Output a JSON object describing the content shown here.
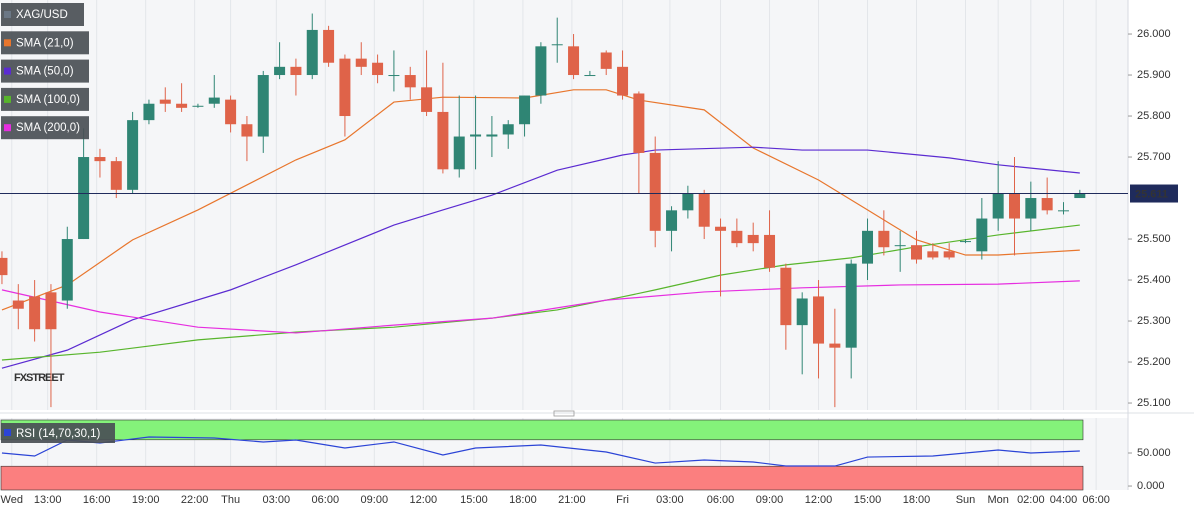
{
  "chart_data": [
    {
      "type": "candlestick",
      "title": "XAG/USD",
      "watermark": "FXSTREET",
      "up_color": "#2f8574",
      "down_color": "#df6349",
      "open": [
        25.454,
        25.35,
        25.36,
        25.37,
        25.35,
        25.5,
        25.7,
        25.69,
        25.62,
        25.79,
        25.84,
        25.83,
        25.825,
        25.83,
        25.84,
        25.78,
        25.75,
        25.9,
        25.92,
        25.9,
        26.01,
        25.94,
        25.94,
        25.93,
        25.9,
        25.9,
        25.87,
        25.81,
        25.67,
        25.75,
        25.75,
        25.755,
        25.78,
        25.85,
        25.975,
        25.97,
        25.9,
        25.955,
        25.92,
        25.855,
        25.71,
        25.52,
        25.57,
        25.61,
        25.53,
        25.52,
        25.51,
        25.51,
        25.43,
        25.29,
        25.36,
        25.245,
        25.235,
        25.44,
        25.52,
        25.485,
        25.485,
        25.47,
        25.47,
        25.495,
        25.47,
        25.55,
        25.61,
        25.55,
        25.6,
        25.57,
        25.6
      ],
      "high": [
        25.47,
        25.39,
        25.4,
        25.39,
        25.53,
        25.77,
        25.72,
        25.7,
        25.81,
        25.84,
        25.87,
        25.88,
        25.83,
        25.9,
        25.85,
        25.8,
        25.91,
        25.98,
        25.94,
        26.05,
        26.02,
        25.95,
        25.98,
        25.95,
        25.96,
        25.92,
        25.96,
        25.93,
        25.85,
        25.85,
        25.8,
        25.79,
        25.85,
        25.98,
        26.04,
        26,
        25.91,
        25.96,
        25.96,
        25.86,
        25.75,
        25.58,
        25.63,
        25.62,
        25.55,
        25.55,
        25.54,
        25.57,
        25.44,
        25.37,
        25.4,
        25.33,
        25.45,
        25.55,
        25.57,
        25.52,
        25.52,
        25.49,
        25.49,
        25.5,
        25.6,
        25.69,
        25.7,
        25.64,
        25.65,
        25.59,
        25.62
      ],
      "low": [
        25.39,
        25.28,
        25.25,
        25.09,
        25.33,
        25.5,
        25.65,
        25.6,
        25.61,
        25.78,
        25.81,
        25.81,
        25.82,
        25.82,
        25.76,
        25.69,
        25.71,
        25.89,
        25.85,
        25.89,
        25.92,
        25.75,
        25.9,
        25.88,
        25.86,
        25.84,
        25.8,
        25.66,
        25.65,
        25.67,
        25.7,
        25.72,
        25.75,
        25.83,
        25.93,
        25.89,
        25.9,
        25.9,
        25.84,
        25.61,
        25.48,
        25.47,
        25.55,
        25.5,
        25.36,
        25.48,
        25.47,
        25.42,
        25.23,
        25.17,
        25.16,
        25.09,
        25.16,
        25.4,
        25.46,
        25.42,
        25.44,
        25.45,
        25.45,
        25.49,
        25.45,
        25.52,
        25.46,
        25.52,
        25.56,
        25.56,
        25.6
      ],
      "close": [
        25.412,
        25.33,
        25.28,
        25.28,
        25.5,
        25.7,
        25.69,
        25.62,
        25.79,
        25.83,
        25.83,
        25.82,
        25.825,
        25.845,
        25.78,
        25.75,
        25.9,
        25.92,
        25.9,
        26.01,
        25.93,
        25.8,
        25.92,
        25.9,
        25.9,
        25.87,
        25.81,
        25.67,
        25.75,
        25.755,
        25.755,
        25.78,
        25.85,
        25.97,
        25.975,
        25.9,
        25.9,
        25.915,
        25.85,
        25.71,
        25.52,
        25.57,
        25.61,
        25.53,
        25.52,
        25.49,
        25.49,
        25.43,
        25.29,
        25.355,
        25.245,
        25.235,
        25.44,
        25.52,
        25.48,
        25.485,
        25.45,
        25.455,
        25.455,
        25.495,
        25.55,
        25.61,
        25.55,
        25.6,
        25.57,
        25.57,
        25.61
      ],
      "series": [
        {
          "name": "SMA (21,0)",
          "color": "#e8762d",
          "x": [
            0,
            4,
            8,
            12,
            15,
            18,
            21,
            24,
            27,
            32,
            35,
            37,
            39,
            43,
            46,
            50,
            53,
            56,
            59,
            61,
            66
          ],
          "values": [
            25.327,
            25.388,
            25.498,
            25.571,
            25.632,
            25.693,
            25.742,
            25.834,
            25.846,
            25.844,
            25.864,
            25.864,
            25.839,
            25.815,
            25.722,
            25.644,
            25.571,
            25.498,
            25.461,
            25.461,
            25.473
          ]
        },
        {
          "name": "SMA (50,0)",
          "color": "#5b2bd1",
          "x": [
            0,
            4,
            8,
            14,
            18,
            24,
            27,
            30,
            34,
            38,
            40,
            46,
            49,
            53,
            58,
            61,
            66
          ],
          "values": [
            25.185,
            25.229,
            25.303,
            25.376,
            25.437,
            25.534,
            25.571,
            25.607,
            25.668,
            25.705,
            25.717,
            25.724,
            25.717,
            25.717,
            25.698,
            25.681,
            25.661
          ]
        },
        {
          "name": "SMA (100,0)",
          "color": "#58b52c",
          "x": [
            0,
            6,
            12,
            18,
            24,
            30,
            34,
            38,
            40,
            44,
            48,
            52,
            56,
            61,
            66
          ],
          "values": [
            25.205,
            25.224,
            25.254,
            25.273,
            25.285,
            25.307,
            25.327,
            25.359,
            25.376,
            25.412,
            25.437,
            25.454,
            25.481,
            25.51,
            25.534
          ]
        },
        {
          "name": "SMA (200,0)",
          "color": "#e62ee0",
          "x": [
            0,
            6,
            12,
            18,
            24,
            30,
            37,
            43,
            49,
            55,
            61,
            66
          ],
          "values": [
            25.376,
            25.322,
            25.285,
            25.271,
            25.29,
            25.307,
            25.351,
            25.371,
            25.381,
            25.388,
            25.39,
            25.398
          ]
        }
      ],
      "last_price": 25.611,
      "ylim": [
        25.083,
        26.083
      ],
      "yticks": [
        {
          "value": 26,
          "label": "26.000"
        },
        {
          "value": 25.9,
          "label": "25.900"
        },
        {
          "value": 25.8,
          "label": "25.800"
        },
        {
          "value": 25.7,
          "label": "25.700"
        },
        {
          "value": 25.5,
          "label": "25.500"
        },
        {
          "value": 25.4,
          "label": "25.400"
        },
        {
          "value": 25.3,
          "label": "25.300"
        },
        {
          "value": 25.2,
          "label": "25.200"
        },
        {
          "value": 25.1,
          "label": "25.100"
        }
      ]
    },
    {
      "type": "line",
      "series": [
        {
          "name": "RSI (14,70,30,1)",
          "color": "#2b44d6",
          "x": [
            0,
            2,
            4,
            6,
            9,
            13,
            16,
            18,
            21,
            24,
            27,
            29,
            33,
            37,
            40,
            43,
            46,
            48,
            51,
            53,
            57,
            61,
            63,
            66
          ],
          "values": [
            50,
            45.5,
            69.7,
            65.2,
            74.2,
            72.7,
            66.7,
            69.7,
            57.6,
            66.7,
            47,
            57.6,
            62.1,
            51.5,
            34.8,
            39.4,
            36.4,
            30.3,
            30.3,
            43.9,
            45.5,
            54.5,
            50,
            53
          ]
        }
      ],
      "overbought": 70,
      "oversold": 30,
      "ylim": [
        -6,
        103
      ],
      "yticks": [
        {
          "value": 50,
          "label": "50.000"
        },
        {
          "value": 0,
          "label": "0.000"
        }
      ],
      "xlim": [
        -0.12,
        68.95
      ],
      "xticks": [
        {
          "value": 0.6,
          "label": "Wed"
        },
        {
          "value": 2.8,
          "label": "13:00"
        },
        {
          "value": 5.8,
          "label": "16:00"
        },
        {
          "value": 8.8,
          "label": "19:00"
        },
        {
          "value": 11.8,
          "label": "22:00"
        },
        {
          "value": 14,
          "label": "Thu"
        },
        {
          "value": 16.8,
          "label": "03:00"
        },
        {
          "value": 19.8,
          "label": "06:00"
        },
        {
          "value": 22.8,
          "label": "09:00"
        },
        {
          "value": 25.8,
          "label": "12:00"
        },
        {
          "value": 28.9,
          "label": "15:00"
        },
        {
          "value": 31.9,
          "label": "18:00"
        },
        {
          "value": 34.9,
          "label": "21:00"
        },
        {
          "value": 38,
          "label": "Fri"
        },
        {
          "value": 40.9,
          "label": "03:00"
        },
        {
          "value": 44,
          "label": "06:00"
        },
        {
          "value": 47,
          "label": "09:00"
        },
        {
          "value": 50,
          "label": "12:00"
        },
        {
          "value": 53,
          "label": "15:00"
        },
        {
          "value": 56,
          "label": "18:00"
        },
        {
          "value": 59,
          "label": "Sun"
        },
        {
          "value": 61,
          "label": "Mon"
        },
        {
          "value": 63,
          "label": "02:00"
        },
        {
          "value": 65,
          "label": "04:00"
        },
        {
          "value": 67,
          "label": "06:00"
        }
      ]
    }
  ]
}
